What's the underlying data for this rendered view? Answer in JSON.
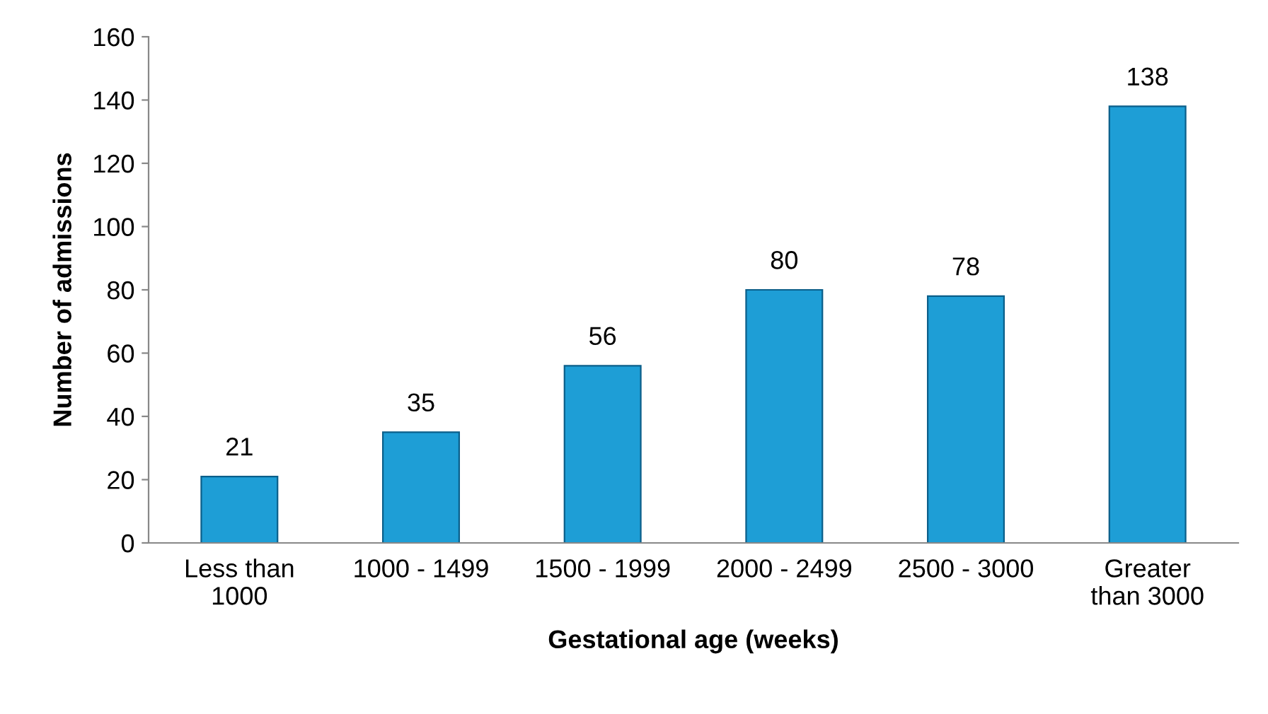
{
  "chart_data": {
    "type": "bar",
    "xlabel": "Gestational age (weeks)",
    "ylabel": "Number of admissions",
    "categories": [
      "Less than\n1000",
      "1000 - 1499",
      "1500 - 1999",
      "2000 - 2499",
      "2500 - 3000",
      "Greater\nthan 3000"
    ],
    "values": [
      21,
      35,
      56,
      80,
      78,
      138
    ],
    "color": "#1e9ed6",
    "ylim": [
      0,
      160
    ],
    "yticks": [
      0,
      20,
      40,
      60,
      80,
      100,
      120,
      140,
      160
    ],
    "grid": false,
    "data_labels": true
  }
}
